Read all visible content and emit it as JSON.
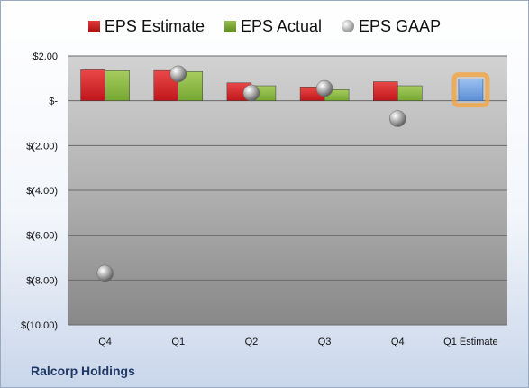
{
  "company": "Ralcorp Holdings",
  "legend": [
    {
      "label": "EPS Estimate",
      "icon": "red-square-icon"
    },
    {
      "label": "EPS Actual",
      "icon": "green-square-icon"
    },
    {
      "label": "EPS GAAP",
      "icon": "gray-sphere-icon"
    }
  ],
  "colors": {
    "estimate": "#c0161b",
    "actual": "#76a832",
    "gaap": "#9a9a9a",
    "forecast": "#5b8fd6",
    "forecast_glow": "#f6a23a"
  },
  "chart_data": {
    "type": "bar",
    "title": "",
    "categories": [
      "Q4",
      "Q1",
      "Q2",
      "Q3",
      "Q4",
      "Q1 Estimate"
    ],
    "series": [
      {
        "name": "EPS Estimate",
        "values": [
          1.38,
          1.35,
          0.8,
          0.62,
          0.85,
          null
        ]
      },
      {
        "name": "EPS Actual",
        "values": [
          1.34,
          1.3,
          0.67,
          0.5,
          0.67,
          null
        ]
      },
      {
        "name": "EPS GAAP",
        "type": "scatter",
        "values": [
          -7.7,
          1.2,
          0.35,
          0.55,
          -0.8,
          null
        ]
      },
      {
        "name": "EPS Estimate (forecast)",
        "values": [
          null,
          null,
          null,
          null,
          null,
          0.97
        ]
      }
    ],
    "y_ticks": [
      2,
      0,
      -2,
      -4,
      -6,
      -8,
      -10
    ],
    "y_tick_labels": [
      "$2.00",
      "$-",
      "$(2.00)",
      "$(4.00)",
      "$(6.00)",
      "$(8.00)",
      "$(10.00)"
    ],
    "ylim": [
      -10,
      2
    ],
    "grid": true,
    "legend_position": "top"
  }
}
